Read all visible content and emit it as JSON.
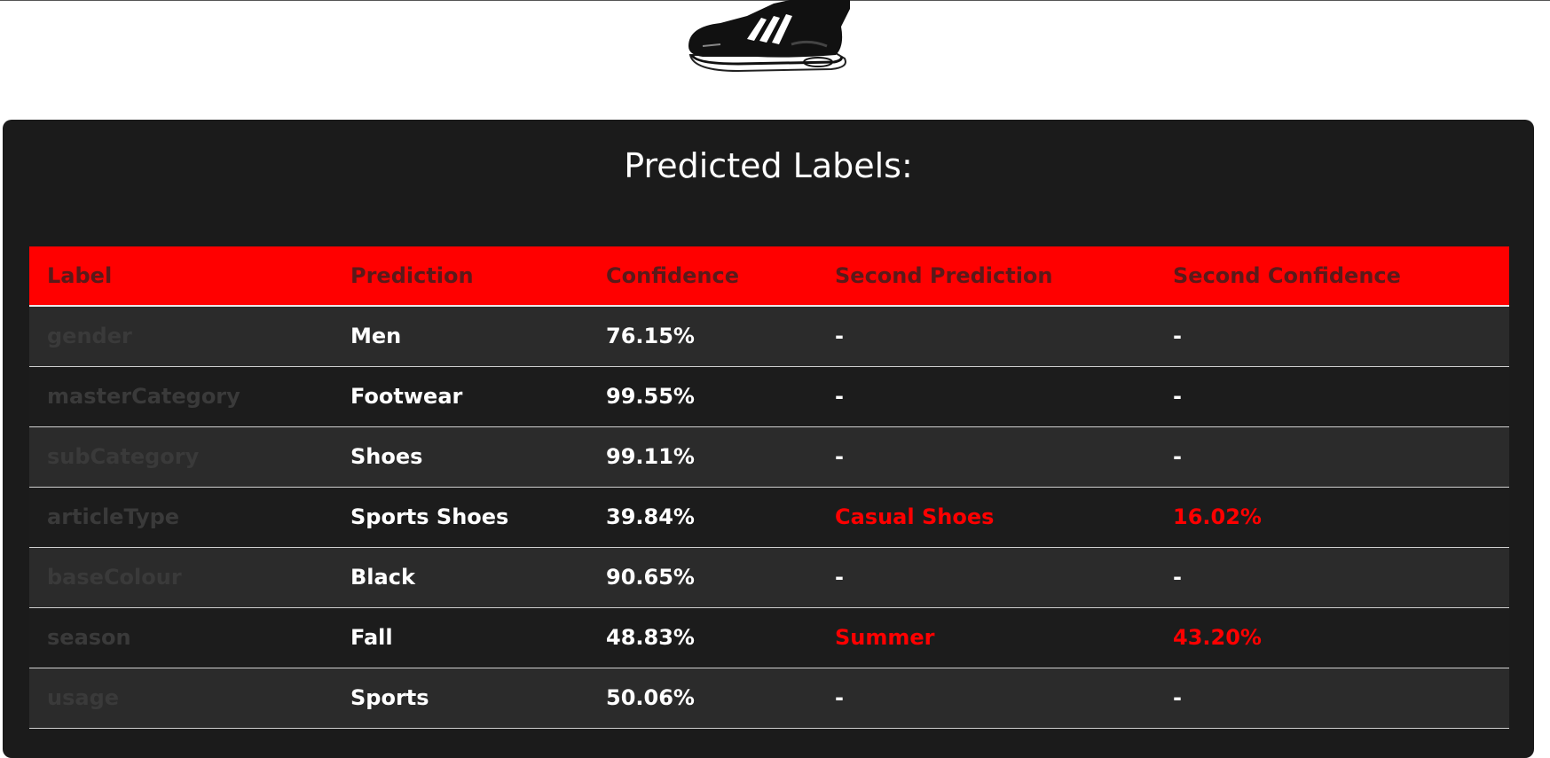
{
  "page": {
    "title": "Predicted Labels:"
  },
  "image": {
    "icon": "sneaker-image"
  },
  "table": {
    "headers": [
      "Label",
      "Prediction",
      "Confidence",
      "Second Prediction",
      "Second Confidence"
    ],
    "rows": [
      {
        "label": "gender",
        "prediction": "Men",
        "confidence": "76.15%",
        "second_prediction": "-",
        "second_confidence": "-"
      },
      {
        "label": "masterCategory",
        "prediction": "Footwear",
        "confidence": "99.55%",
        "second_prediction": "-",
        "second_confidence": "-"
      },
      {
        "label": "subCategory",
        "prediction": "Shoes",
        "confidence": "99.11%",
        "second_prediction": "-",
        "second_confidence": "-"
      },
      {
        "label": "articleType",
        "prediction": "Sports Shoes",
        "confidence": "39.84%",
        "second_prediction": "Casual Shoes",
        "second_confidence": "16.02%"
      },
      {
        "label": "baseColour",
        "prediction": "Black",
        "confidence": "90.65%",
        "second_prediction": "-",
        "second_confidence": "-"
      },
      {
        "label": "season",
        "prediction": "Fall",
        "confidence": "48.83%",
        "second_prediction": "Summer",
        "second_confidence": "43.20%"
      },
      {
        "label": "usage",
        "prediction": "Sports",
        "confidence": "50.06%",
        "second_prediction": "-",
        "second_confidence": "-"
      }
    ]
  },
  "colors": {
    "header_bg": "#ff0000",
    "card_bg": "#1b1b1b",
    "second_text": "#ff0000"
  }
}
